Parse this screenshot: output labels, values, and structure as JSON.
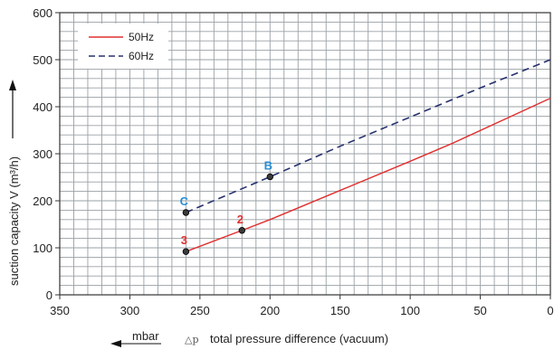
{
  "chart_data": {
    "type": "line",
    "xlabel": "total pressure difference (vacuum)",
    "xlabel_symbol": "△p",
    "xunit": "mbar",
    "ylabel": "suction capacity V (m³/h)",
    "xlim": [
      350,
      0
    ],
    "ylim": [
      0,
      600
    ],
    "x_reversed": true,
    "x_ticks": [
      350,
      300,
      250,
      200,
      150,
      100,
      50,
      0
    ],
    "x_tick_labels": [
      "350",
      "300",
      "250",
      "200",
      "150",
      "100",
      "50",
      "0"
    ],
    "y_ticks": [
      0,
      100,
      200,
      300,
      400,
      500,
      600
    ],
    "y_tick_labels": [
      "0",
      "100",
      "200",
      "300",
      "400",
      "500",
      "600"
    ],
    "grid": true,
    "legend_position": "top-left",
    "series": [
      {
        "name": "50Hz",
        "style": "solid",
        "color": "#e03030",
        "x": [
          260,
          220,
          200,
          150,
          100,
          70,
          0
        ],
        "y": [
          92,
          137,
          160,
          222,
          284,
          322,
          418
        ]
      },
      {
        "name": "60Hz",
        "style": "dashed",
        "color": "#26306e",
        "x": [
          260,
          200,
          150,
          100,
          50,
          0
        ],
        "y": [
          175,
          251,
          316,
          378,
          440,
          500
        ]
      }
    ],
    "annotations": [
      {
        "label": "3",
        "x": 260,
        "y": 92,
        "color": "#e03030"
      },
      {
        "label": "2",
        "x": 220,
        "y": 137,
        "color": "#e03030"
      },
      {
        "label": "C",
        "x": 260,
        "y": 175,
        "color": "#2a8fd6"
      },
      {
        "label": "B",
        "x": 200,
        "y": 251,
        "color": "#2a8fd6"
      }
    ]
  }
}
